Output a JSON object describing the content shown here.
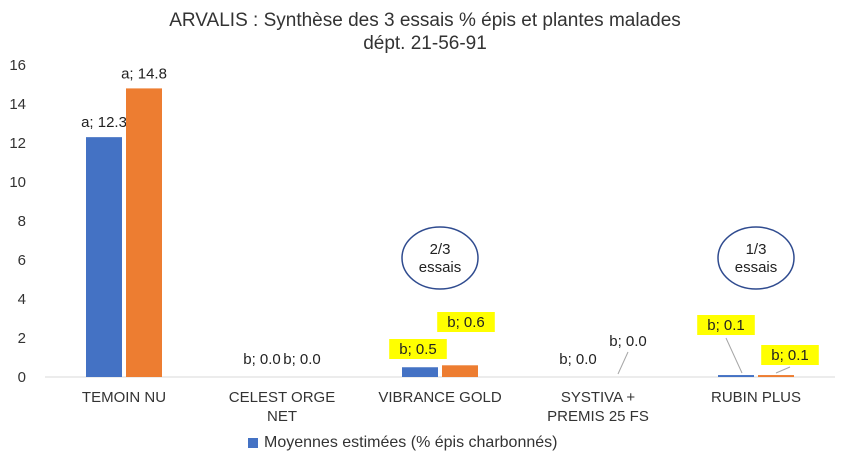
{
  "chart_data": {
    "type": "bar",
    "title": "ARVALIS : Synthèse des 3 essais % épis et plantes malades",
    "subtitle": "dépt. 21-56-91",
    "categories": [
      [
        "TEMOIN NU"
      ],
      [
        "CELEST ORGE",
        "NET"
      ],
      [
        "VIBRANCE GOLD"
      ],
      [
        "SYSTIVA +",
        "PREMIS 25 FS"
      ],
      [
        "RUBIN PLUS"
      ]
    ],
    "ylim": [
      0,
      16
    ],
    "yticks": [
      0,
      2,
      4,
      6,
      8,
      10,
      12,
      14,
      16
    ],
    "grid": false,
    "series": [
      {
        "name": "Moyennes estimées (% épis charbonnés)",
        "color": "#4472C4",
        "values": [
          12.3,
          0.0,
          0.5,
          0.0,
          0.1
        ],
        "labels": [
          "a; 12.3",
          "b; 0.0",
          "b; 0.5",
          "b; 0.0",
          "b; 0.1"
        ],
        "highlight": [
          false,
          false,
          true,
          false,
          true
        ]
      },
      {
        "color": "#ED7D31",
        "values": [
          14.8,
          0.0,
          0.6,
          0.0,
          0.1
        ],
        "labels": [
          "a; 14.8",
          "b; 0.0",
          "b; 0.6",
          "b; 0.0",
          "b; 0.1"
        ],
        "highlight": [
          false,
          false,
          true,
          false,
          true
        ]
      }
    ],
    "legend_position": "bottom",
    "annotations": [
      {
        "text": [
          "2/3",
          "essais"
        ],
        "category_index": 2
      },
      {
        "text": [
          "1/3",
          "essais"
        ],
        "category_index": 4
      }
    ],
    "colors": {
      "axis": "#D9D9D9",
      "text": "#333333",
      "highlight": "#FFFF00",
      "ellipse": "#2F4B8F",
      "leader": "#A6A6A6"
    }
  }
}
